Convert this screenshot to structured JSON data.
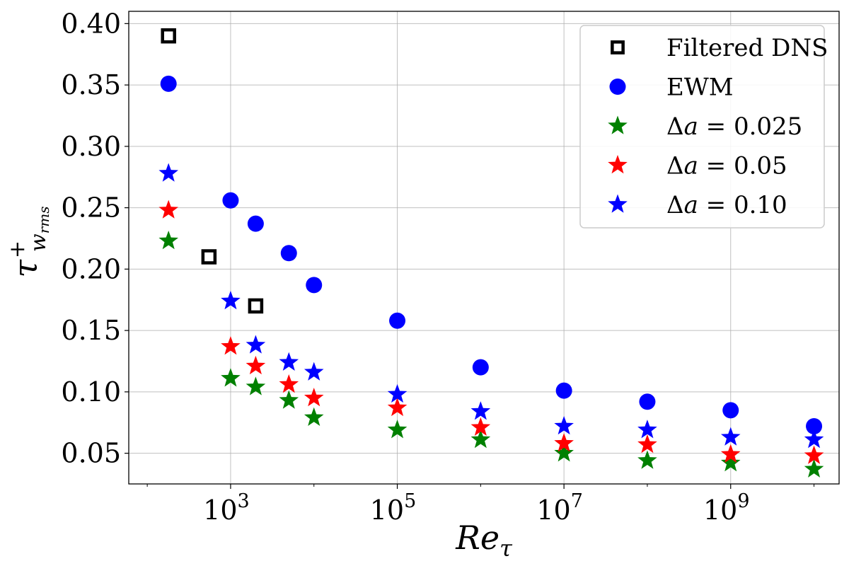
{
  "chart_data": {
    "type": "scatter",
    "xscale": "log",
    "xlim": [
      60,
      20000000000.0
    ],
    "ylim": [
      0.025,
      0.41
    ],
    "xlabel": "Re",
    "xlabel_sub": "τ",
    "ylabel": "τ",
    "ylabel_sup": "+",
    "ylabel_sub": "w",
    "ylabel_subsub": "rms",
    "grid": true,
    "legend_position": "top-right",
    "x_ticks": [
      {
        "value": 1000,
        "base": "10",
        "exp": "3"
      },
      {
        "value": 100000,
        "base": "10",
        "exp": "5"
      },
      {
        "value": 10000000,
        "base": "10",
        "exp": "7"
      },
      {
        "value": 1000000000,
        "base": "10",
        "exp": "9"
      }
    ],
    "y_ticks": [
      {
        "value": 0.05,
        "label": "0.05"
      },
      {
        "value": 0.1,
        "label": "0.10"
      },
      {
        "value": 0.15,
        "label": "0.15"
      },
      {
        "value": 0.2,
        "label": "0.20"
      },
      {
        "value": 0.25,
        "label": "0.25"
      },
      {
        "value": 0.3,
        "label": "0.30"
      },
      {
        "value": 0.35,
        "label": "0.35"
      },
      {
        "value": 0.4,
        "label": "0.40"
      }
    ],
    "series": [
      {
        "name": "Filtered DNS",
        "marker": "square",
        "color": "#000000",
        "x": [
          180,
          550,
          2000
        ],
        "y": [
          0.39,
          0.21,
          0.17
        ]
      },
      {
        "name": "EWM",
        "marker": "circle",
        "color": "#0000ff",
        "x": [
          180,
          1000,
          2000,
          5000,
          10000,
          100000,
          1000000,
          10000000,
          100000000,
          1000000000,
          10000000000
        ],
        "y": [
          0.351,
          0.256,
          0.237,
          0.213,
          0.187,
          0.158,
          0.12,
          0.101,
          0.092,
          0.085,
          0.072
        ]
      },
      {
        "name": "Δa = 0.025",
        "label_prefix": "Δ",
        "label_var": "a",
        "label_value": " = 0.025",
        "marker": "star",
        "color": "#008000",
        "x": [
          180,
          1000,
          2000,
          5000,
          10000,
          100000,
          1000000,
          10000000,
          100000000,
          1000000000,
          10000000000
        ],
        "y": [
          0.223,
          0.111,
          0.104,
          0.093,
          0.079,
          0.069,
          0.061,
          0.05,
          0.044,
          0.042,
          0.037
        ]
      },
      {
        "name": "Δa = 0.05",
        "label_prefix": "Δ",
        "label_var": "a",
        "label_value": " = 0.05",
        "marker": "star",
        "color": "#ff0000",
        "x": [
          180,
          1000,
          2000,
          5000,
          10000,
          100000,
          1000000,
          10000000,
          100000000,
          1000000000,
          10000000000
        ],
        "y": [
          0.248,
          0.137,
          0.121,
          0.106,
          0.095,
          0.087,
          0.071,
          0.058,
          0.057,
          0.049,
          0.048
        ]
      },
      {
        "name": "Δa = 0.10",
        "label_prefix": "Δ",
        "label_var": "a",
        "label_value": " = 0.10",
        "marker": "star",
        "color": "#0000ff",
        "x": [
          180,
          1000,
          2000,
          5000,
          10000,
          100000,
          1000000,
          10000000,
          100000000,
          1000000000,
          10000000000
        ],
        "y": [
          0.278,
          0.174,
          0.138,
          0.124,
          0.116,
          0.098,
          0.084,
          0.072,
          0.069,
          0.063,
          0.061
        ]
      }
    ]
  }
}
